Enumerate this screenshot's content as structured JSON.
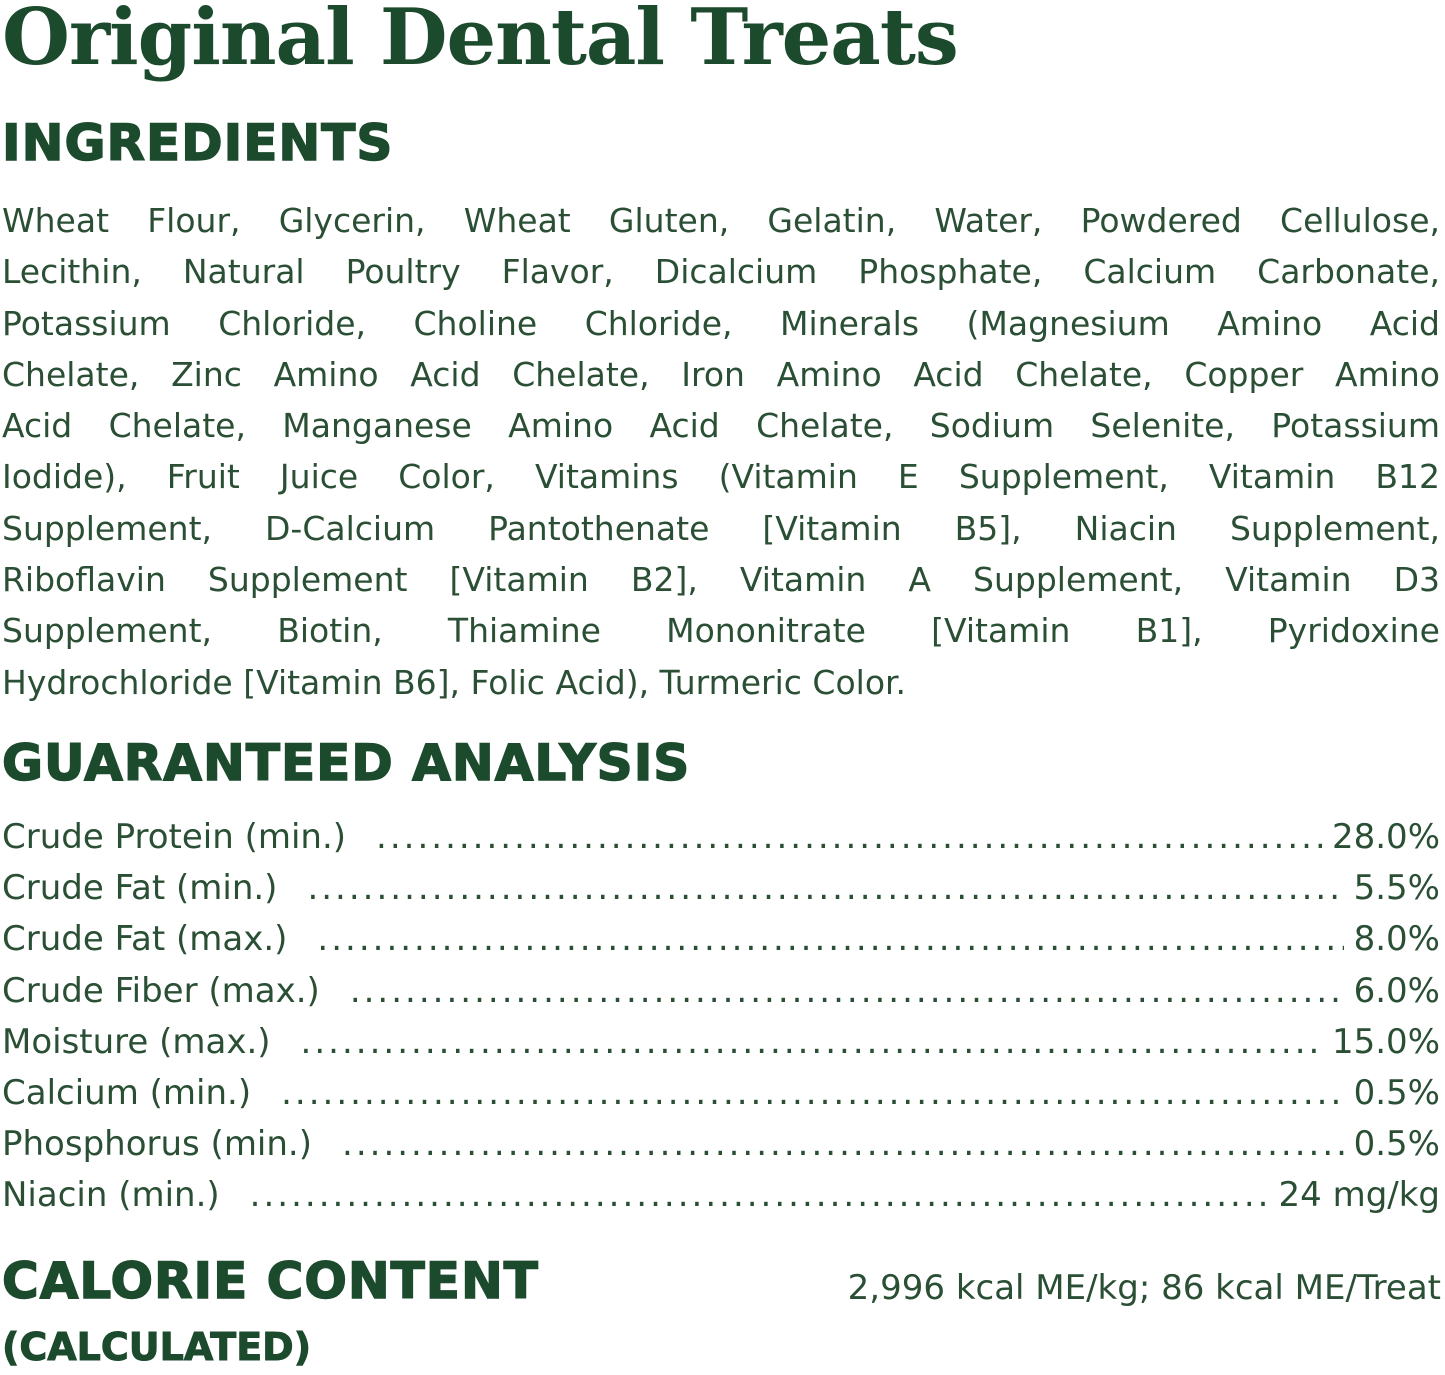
{
  "title": "Original Dental Treats",
  "ingredients": {
    "heading": "INGREDIENTS",
    "lines": [
      "Wheat Flour, Glycerin, Wheat Gluten, Gelatin, Water, Powdered Cellulose,",
      "Lecithin, Natural Poultry Flavor, Dicalcium Phosphate, Calcium Carbonate,",
      "Potassium Chloride, Choline Chloride, Minerals (Magnesium Amino Acid",
      "Chelate, Zinc Amino Acid Chelate, Iron Amino Acid Chelate, Copper Amino",
      "Acid Chelate, Manganese Amino Acid Chelate, Sodium Selenite, Potassium",
      "Iodide), Fruit Juice Color, Vitamins (Vitamin E Supplement, Vitamin B12",
      "Supplement, D-Calcium Pantothenate [Vitamin B5], Niacin Supplement,",
      "Riboflavin Supplement [Vitamin B2], Vitamin A Supplement, Vitamin D3",
      "Supplement, Biotin, Thiamine Mononitrate [Vitamin B1], Pyridoxine",
      "Hydrochloride [Vitamin B6], Folic Acid), Turmeric Color."
    ]
  },
  "analysis": {
    "heading": "GUARANTEED ANALYSIS",
    "rows": [
      {
        "label": "Crude Protein (min.)",
        "value": "28.0%"
      },
      {
        "label": "Crude Fat (min.)",
        "value": "5.5%"
      },
      {
        "label": "Crude Fat (max.)",
        "value": "8.0%"
      },
      {
        "label": "Crude Fiber (max.)",
        "value": "6.0%"
      },
      {
        "label": "Moisture (max.)",
        "value": "15.0%"
      },
      {
        "label": "Calcium (min.)",
        "value": "0.5%"
      },
      {
        "label": "Phosphorus (min.)",
        "value": "0.5%"
      },
      {
        "label": "Niacin (min.)",
        "value": "24 mg/kg"
      }
    ]
  },
  "calorie": {
    "heading": "CALORIE CONTENT",
    "subheading": "(CALCULATED)",
    "value": "2,996 kcal ME/kg; 86 kcal ME/Treat"
  }
}
